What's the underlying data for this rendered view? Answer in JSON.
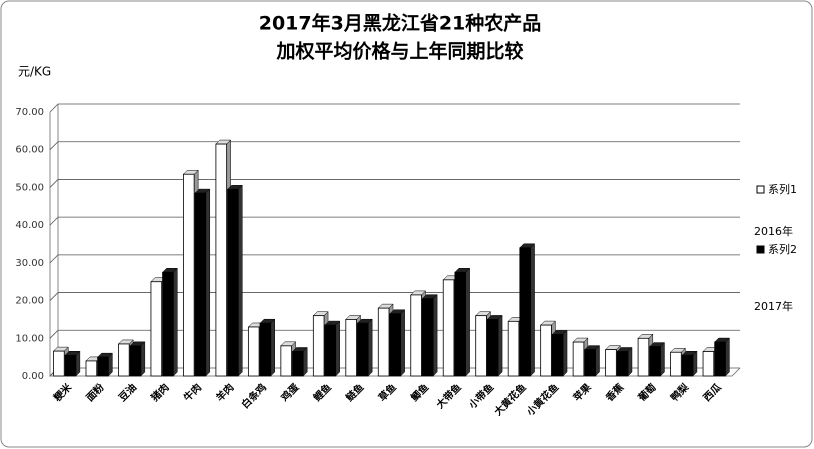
{
  "chart_data": {
    "type": "bar",
    "title": [
      "2017年3月黑龙江省21种农产品",
      "加权平均价格与上年同期比较"
    ],
    "y_label": "元/KG",
    "categories": [
      "粳米",
      "面粉",
      "豆油",
      "猪肉",
      "牛肉",
      "羊肉",
      "白条鸡",
      "鸡蛋",
      "鲤鱼",
      "鲢鱼",
      "草鱼",
      "鲫鱼",
      "大带鱼",
      "小带鱼",
      "大黄花鱼",
      "小黄花鱼",
      "苹果",
      "香蕉",
      "葡萄",
      "鸭梨",
      "西瓜"
    ],
    "series": [
      {
        "name": "系列1",
        "color": "#ffffff",
        "values": [
          6.6,
          4,
          8.5,
          25,
          53.5,
          61.5,
          13,
          8,
          16,
          15,
          18,
          21.5,
          25.5,
          16,
          14.5,
          13.5,
          9,
          7,
          10,
          6.3,
          6.5
        ]
      },
      {
        "name": "系列2",
        "color": "#000000",
        "values": [
          5.5,
          5,
          8,
          27.5,
          48.5,
          49.5,
          14,
          6.5,
          13.5,
          14,
          16.5,
          20.5,
          27.5,
          15,
          34,
          11,
          7,
          6.5,
          7.8,
          5.5,
          9
        ]
      }
    ],
    "legend_notes": [
      "2016年",
      "2017年"
    ],
    "ylim": [
      0,
      70
    ],
    "yticks": [
      {
        "value": 0,
        "label": "0.00"
      },
      {
        "value": 10,
        "label": "10.00"
      },
      {
        "value": 20,
        "label": "20.00"
      },
      {
        "value": 30,
        "label": "30.00"
      },
      {
        "value": 40,
        "label": "40.00"
      },
      {
        "value": 50,
        "label": "50.00"
      },
      {
        "value": 60,
        "label": "60.00"
      },
      {
        "value": 70,
        "label": "70.00"
      }
    ],
    "grid": true
  }
}
